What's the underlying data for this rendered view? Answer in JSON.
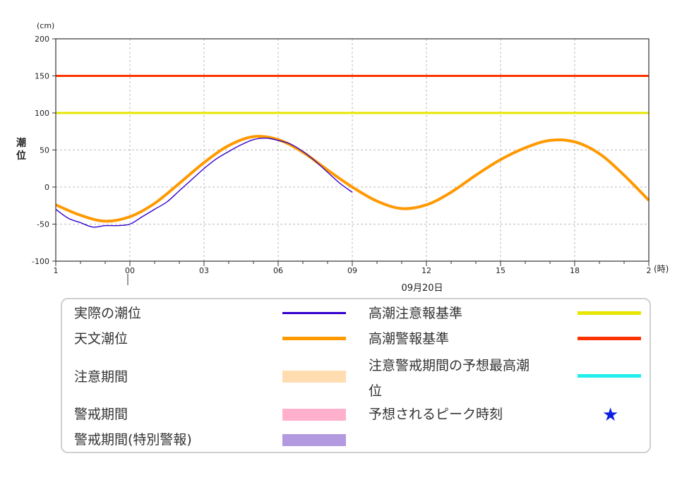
{
  "chart_data": {
    "type": "line",
    "y_unit": "(cm)",
    "ylabel": "潮位",
    "x_unit": "(時)",
    "date_label": "09月20日",
    "ylim": [
      -100,
      200
    ],
    "yticks": [
      200,
      150,
      100,
      50,
      0,
      -50,
      -100
    ],
    "xticks": [
      "1",
      "00",
      "03",
      "06",
      "09",
      "12",
      "15",
      "18",
      "2"
    ],
    "grid": true,
    "thresholds": [
      {
        "name": "高潮警報基準",
        "value": 150,
        "color": "#ff3300"
      },
      {
        "name": "高潮注意報基準",
        "value": 100,
        "color": "#e6e600"
      }
    ],
    "series": [
      {
        "name": "天文潮位",
        "color": "#ff9900",
        "x": [
          -3,
          -2,
          -1,
          0,
          1,
          2,
          3,
          4,
          5,
          6,
          7,
          8,
          9,
          10,
          11,
          12,
          13,
          14,
          15,
          16,
          17,
          18,
          19,
          20,
          21
        ],
        "values": [
          -24,
          -38,
          -46,
          -40,
          -22,
          5,
          33,
          56,
          68,
          64,
          47,
          23,
          0,
          -19,
          -29,
          -24,
          -7,
          16,
          37,
          53,
          63,
          61,
          45,
          16,
          -18
        ]
      },
      {
        "name": "実際の潮位",
        "color": "#3300cc",
        "x": [
          -3,
          -2.5,
          -2,
          -1.5,
          -1,
          -0.5,
          0,
          0.5,
          1,
          1.5,
          2,
          2.5,
          3,
          3.5,
          4,
          4.5,
          5,
          5.5,
          6,
          6.5,
          7,
          7.5,
          8,
          8.5,
          9
        ],
        "values": [
          -30,
          -42,
          -48,
          -54,
          -52,
          -52,
          -50,
          -40,
          -30,
          -20,
          -5,
          10,
          25,
          38,
          48,
          57,
          64,
          66,
          63,
          58,
          48,
          35,
          20,
          5,
          -7
        ]
      }
    ]
  },
  "legend": {
    "items": [
      {
        "label": "実際の潮位",
        "color": "#3300cc",
        "kind": "line"
      },
      {
        "label": "天文潮位",
        "color": "#ff9900",
        "kind": "line"
      },
      {
        "label": "注意期間",
        "color": "#ffddb0",
        "kind": "band"
      },
      {
        "label": "警戒期間",
        "color": "#ffb0cc",
        "kind": "band"
      },
      {
        "label": "警戒期間(特別警報)",
        "color": "#b399e0",
        "kind": "band"
      },
      {
        "label": "高潮注意報基準",
        "color": "#e6e600",
        "kind": "line"
      },
      {
        "label": "高潮警報基準",
        "color": "#ff3300",
        "kind": "line"
      },
      {
        "label": "注意警戒期間の予想最高潮",
        "label2": "位",
        "color": "#22eeee",
        "kind": "line"
      },
      {
        "label": "予想されるピーク時刻",
        "color": "#0a1ee0",
        "kind": "star",
        "icon": "star-icon"
      }
    ]
  }
}
